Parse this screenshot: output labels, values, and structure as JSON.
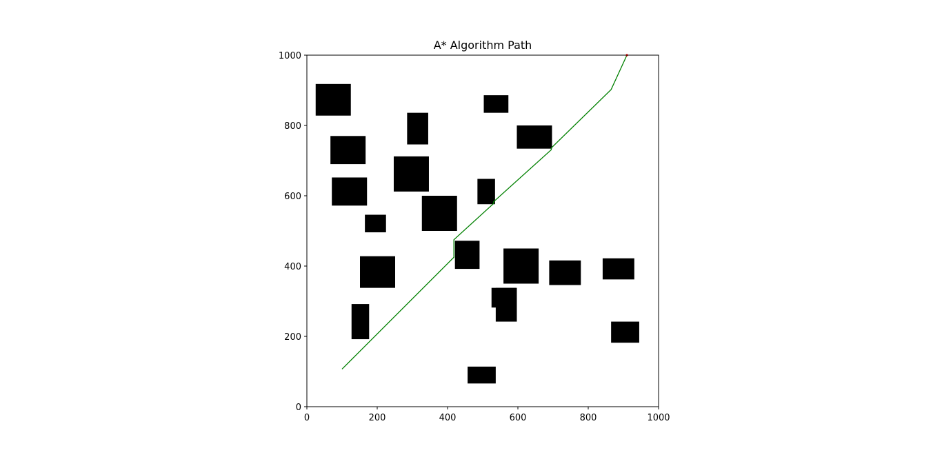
{
  "chart_data": {
    "type": "scatter",
    "title": "A* Algorithm Path",
    "xlabel": "",
    "ylabel": "",
    "xlim": [
      0,
      1000
    ],
    "ylim": [
      0,
      1000
    ],
    "xticks": [
      0,
      200,
      400,
      600,
      800,
      1000
    ],
    "yticks": [
      0,
      200,
      400,
      600,
      800,
      1000
    ],
    "grid": false,
    "aspect": "equal",
    "colors": {
      "path": "#008000",
      "obstacle": "#000000",
      "goal": "#ff0000"
    },
    "obstacles": [
      {
        "x0": 25,
        "x1": 125,
        "y0": 828,
        "y1": 918
      },
      {
        "x0": 503,
        "x1": 573,
        "y0": 836,
        "y1": 886
      },
      {
        "x0": 285,
        "x1": 345,
        "y0": 746,
        "y1": 836
      },
      {
        "x0": 597,
        "x1": 697,
        "y0": 734,
        "y1": 800
      },
      {
        "x0": 67,
        "x1": 167,
        "y0": 690,
        "y1": 770
      },
      {
        "x0": 247,
        "x1": 347,
        "y0": 612,
        "y1": 712
      },
      {
        "x0": 71,
        "x1": 171,
        "y0": 572,
        "y1": 652
      },
      {
        "x0": 485,
        "x1": 535,
        "y0": 576,
        "y1": 648
      },
      {
        "x0": 327,
        "x1": 427,
        "y0": 500,
        "y1": 600
      },
      {
        "x0": 165,
        "x1": 225,
        "y0": 496,
        "y1": 546
      },
      {
        "x0": 421,
        "x1": 491,
        "y0": 392,
        "y1": 472
      },
      {
        "x0": 559,
        "x1": 659,
        "y0": 350,
        "y1": 450
      },
      {
        "x0": 151,
        "x1": 251,
        "y0": 338,
        "y1": 428
      },
      {
        "x0": 689,
        "x1": 779,
        "y0": 346,
        "y1": 416
      },
      {
        "x0": 841,
        "x1": 931,
        "y0": 362,
        "y1": 422
      },
      {
        "x0": 525,
        "x1": 595,
        "y0": 282,
        "y1": 338
      },
      {
        "x0": 537,
        "x1": 597,
        "y0": 242,
        "y1": 338
      },
      {
        "x0": 127,
        "x1": 177,
        "y0": 192,
        "y1": 292
      },
      {
        "x0": 865,
        "x1": 945,
        "y0": 182,
        "y1": 242
      },
      {
        "x0": 457,
        "x1": 537,
        "y0": 66,
        "y1": 114
      }
    ],
    "path": {
      "x": [
        100,
        418,
        418,
        531,
        531,
        695,
        695,
        865,
        910
      ],
      "y": [
        107,
        425,
        475,
        578,
        583,
        731,
        736,
        902,
        1000
      ]
    },
    "goal": {
      "x": 910,
      "y": 1000
    }
  }
}
